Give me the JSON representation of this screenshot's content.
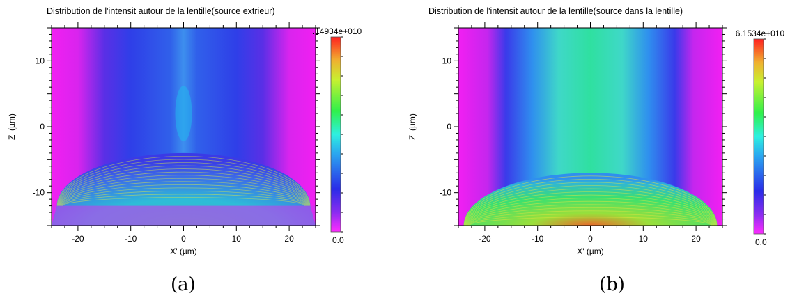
{
  "chart_data": [
    {
      "type": "heatmap",
      "title": "Distribution de l'intensit autour de la lentille(source extrieur)",
      "caption": "(a)",
      "xlabel": "X' (µm)",
      "ylabel": "Z' (µm)",
      "xlim": [
        -25,
        25
      ],
      "ylim": [
        -15,
        15
      ],
      "x_ticks": [
        -20,
        -10,
        0,
        10,
        20
      ],
      "x_tick_labels": [
        "-20",
        "-10",
        "0",
        "10",
        "20"
      ],
      "y_ticks": [
        -10,
        0,
        10
      ],
      "y_tick_labels": [
        "-10",
        "0",
        "10"
      ],
      "colorbar": {
        "min": 0,
        "max_label": ".14934e+010",
        "min_label": "0.0",
        "colormap": "rainbow (magenta-blue-cyan-green-yellow-red)"
      },
      "features": {
        "lens_apex_z": -4,
        "lens_base_z": -12,
        "lens_half_width": 24,
        "focus_z": 2,
        "focus_x": 0,
        "side_color": "#f21ff2",
        "background_color": "#2f3fe8",
        "beam_color": "#22b7ee"
      }
    },
    {
      "type": "heatmap",
      "title": "Distribution de l'intensit autour de la lentille(source dans la lentille)",
      "caption": "(b)",
      "xlabel": "X' (µm)",
      "ylabel": "Z' (µm)",
      "xlim": [
        -25,
        25
      ],
      "ylim": [
        -15,
        15
      ],
      "x_ticks": [
        -20,
        -10,
        0,
        10,
        20
      ],
      "x_tick_labels": [
        "-20",
        "-10",
        "0",
        "10",
        "20"
      ],
      "y_ticks": [
        -10,
        0,
        10
      ],
      "y_tick_labels": [
        "-10",
        "0",
        "10"
      ],
      "colorbar": {
        "min": 0,
        "max_label": "6.1534e+010",
        "min_label": "0.0",
        "colormap": "rainbow (magenta-blue-cyan-green-yellow-red)"
      },
      "features": {
        "lens_apex_z": -7,
        "lens_base_z": -15,
        "lens_half_width": 24,
        "side_color": "#f21ff2",
        "background_color": "#2f3fe8",
        "beam_color": "#2fe0a0"
      }
    }
  ]
}
